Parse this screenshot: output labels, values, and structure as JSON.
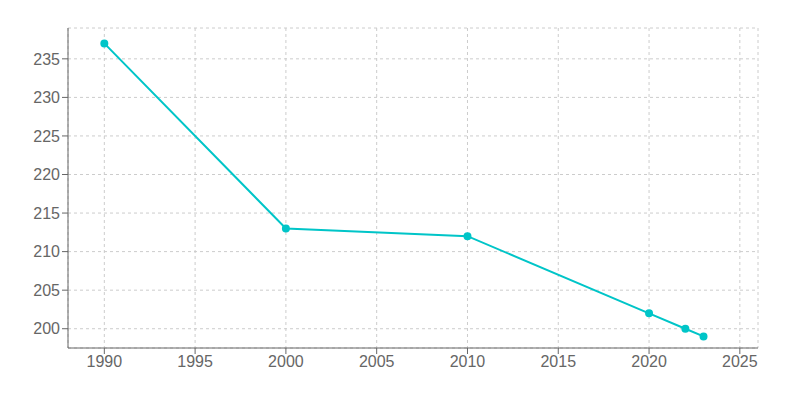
{
  "chart_data": {
    "type": "line",
    "x": [
      1990,
      2000,
      2010,
      2020,
      2022,
      2023
    ],
    "values": [
      237,
      213,
      212,
      202,
      200,
      199
    ],
    "color": "#00C5C8",
    "marker": "circle",
    "xlim": [
      1988,
      2026
    ],
    "ylim": [
      197.5,
      239
    ],
    "xticks": [
      1990,
      1995,
      2000,
      2005,
      2010,
      2015,
      2020,
      2025
    ],
    "yticks": [
      200,
      205,
      210,
      215,
      220,
      225,
      230,
      235
    ],
    "grid": true
  }
}
